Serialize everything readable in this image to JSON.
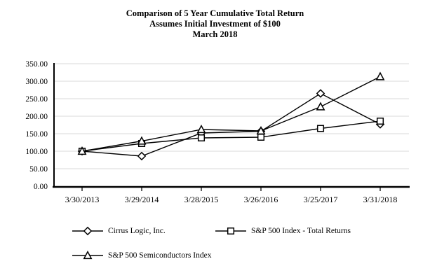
{
  "title": {
    "line1": "Comparison of 5 Year Cumulative Total Return",
    "line2": "Assumes Initial Investment of $100",
    "line3": "March 2018"
  },
  "chart_data": {
    "type": "line",
    "categories": [
      "3/30/2013",
      "3/29/2014",
      "3/28/2015",
      "3/26/2016",
      "3/25/2017",
      "3/31/2018"
    ],
    "series": [
      {
        "name": "Cirrus Logic, Inc.",
        "marker": "diamond",
        "values": [
          100,
          86,
          152,
          157,
          265,
          177
        ]
      },
      {
        "name": "S&P 500 Index - Total Returns",
        "marker": "square",
        "values": [
          100,
          122,
          138,
          140,
          165,
          186
        ]
      },
      {
        "name": "S&P 500 Semiconductors Index",
        "marker": "triangle",
        "values": [
          100,
          129,
          162,
          158,
          227,
          313
        ]
      }
    ],
    "ylim": [
      0,
      350
    ],
    "ytick_step": 50,
    "ytick_labels": [
      "0.00",
      "50.00",
      "100.00",
      "150.00",
      "200.00",
      "250.00",
      "300.00",
      "350.00"
    ],
    "grid": true,
    "legend_position": "bottom",
    "colors": {
      "line": "#000000",
      "grid": "#d9d9d9",
      "axis": "#000000",
      "marker_fill": "#ffffff",
      "background": "#ffffff"
    }
  }
}
